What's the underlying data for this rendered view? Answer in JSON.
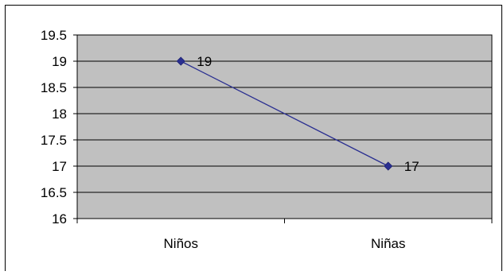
{
  "chart_data": {
    "type": "line",
    "categories": [
      "Niños",
      "Niñas"
    ],
    "series": [
      {
        "values": [
          19,
          17
        ]
      }
    ],
    "ylim": [
      16,
      19.5
    ],
    "yticks": [
      16,
      16.5,
      17,
      17.5,
      18,
      18.5,
      19,
      19.5
    ],
    "ytick_labels": [
      "16",
      "16.5",
      "17",
      "17.5",
      "18",
      "18.5",
      "19",
      "19.5"
    ],
    "data_labels": [
      "19",
      "17"
    ],
    "grid": true,
    "legend": "none",
    "colors": {
      "plot_background": "#c0c0c0",
      "line": "#2a2f91",
      "marker": "#2a2f91",
      "gridline": "#000000",
      "frame": "#000000"
    }
  }
}
